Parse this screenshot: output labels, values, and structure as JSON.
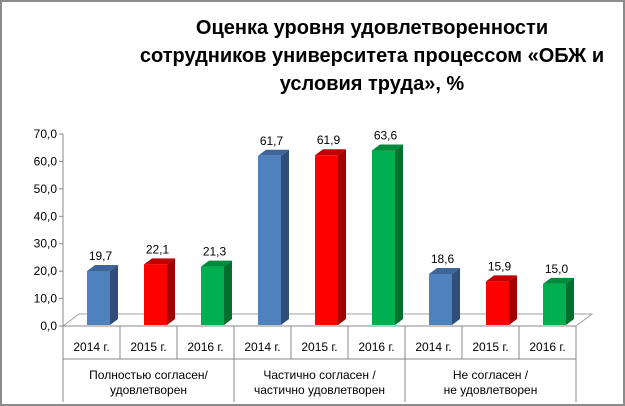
{
  "chart_data": {
    "type": "bar",
    "title_lines": [
      "Оценка уровня удовлетворенности",
      "сотрудников университета процессом  «ОБЖ и",
      "условия труда», %"
    ],
    "ylim": [
      0,
      70
    ],
    "yticks": [
      "0,0",
      "10,0",
      "20,0",
      "30,0",
      "40,0",
      "50,0",
      "60,0",
      "70,0"
    ],
    "groups": [
      {
        "label_lines": [
          "Полностью согласен/",
          "удовлетворен"
        ],
        "years": [
          "2014 г.",
          "2015 г.",
          "2016 г."
        ],
        "values": [
          19.7,
          22.1,
          21.3
        ],
        "value_labels": [
          "19,7",
          "22,1",
          "21,3"
        ]
      },
      {
        "label_lines": [
          "Частично согласен /",
          "частично удовлетворен"
        ],
        "years": [
          "2014 г.",
          "2015 г.",
          "2016 г."
        ],
        "values": [
          61.7,
          61.9,
          63.6
        ],
        "value_labels": [
          "61,7",
          "61,9",
          "63,6"
        ]
      },
      {
        "label_lines": [
          "Не согласен /",
          "не удовлетворен"
        ],
        "years": [
          "2014 г.",
          "2015 г.",
          "2016 г."
        ],
        "values": [
          18.6,
          15.9,
          15.0
        ],
        "value_labels": [
          "18,6",
          "15,9",
          "15,0"
        ]
      }
    ],
    "colors": [
      {
        "front": "#4f81bd",
        "side": "#2f4f7a",
        "top": "#3d6599"
      },
      {
        "front": "#ff0000",
        "side": "#a00000",
        "top": "#c00000"
      },
      {
        "front": "#00b050",
        "side": "#00702f",
        "top": "#008a3c"
      }
    ]
  }
}
